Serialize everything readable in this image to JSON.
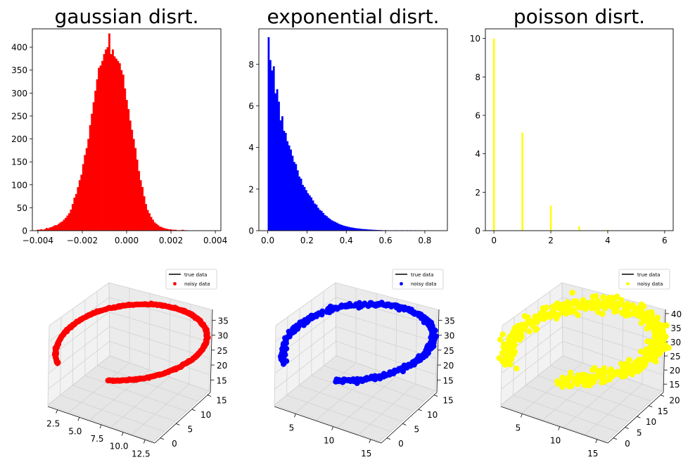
{
  "chart_data": [
    {
      "type": "histogram",
      "title": "gaussian disrt.",
      "color": "#ff0000",
      "xlim": [
        -0.00425,
        0.00425
      ],
      "ylim": [
        0,
        440
      ],
      "xticks": [
        -0.004,
        -0.002,
        0.0,
        0.002,
        0.004
      ],
      "xtick_labels": [
        "−0.004",
        "−0.002",
        "0.000",
        "0.002",
        "0.004"
      ],
      "yticks": [
        0,
        50,
        100,
        150,
        200,
        250,
        300,
        350,
        400
      ],
      "ytick_labels": [
        "0",
        "50",
        "100",
        "150",
        "200",
        "250",
        "300",
        "350",
        "400"
      ],
      "bin_edges_start": -0.00405,
      "bin_width": 7.87e-05,
      "values": [
        2,
        2,
        3,
        2,
        3,
        6,
        5,
        7,
        8,
        10,
        12,
        12,
        15,
        18,
        20,
        24,
        28,
        33,
        38,
        46,
        58,
        72,
        80,
        95,
        110,
        122,
        145,
        165,
        180,
        200,
        230,
        255,
        280,
        305,
        330,
        355,
        360,
        370,
        385,
        395,
        400,
        430,
        385,
        395,
        380,
        375,
        370,
        365,
        350,
        340,
        310,
        285,
        265,
        240,
        220,
        200,
        180,
        155,
        130,
        110,
        95,
        75,
        58,
        45,
        38,
        30,
        24,
        18,
        15,
        12,
        9,
        8,
        6,
        5,
        4,
        3,
        3,
        2,
        2,
        2,
        1,
        1,
        1,
        2,
        1,
        1
      ]
    },
    {
      "type": "histogram",
      "title": "exponential disrt.",
      "color": "#0000ff",
      "xlim": [
        -0.045,
        0.915
      ],
      "ylim": [
        0,
        9.7
      ],
      "xticks": [
        0.0,
        0.2,
        0.4,
        0.6,
        0.8
      ],
      "xtick_labels": [
        "0.0",
        "0.2",
        "0.4",
        "0.6",
        "0.8"
      ],
      "yticks": [
        0,
        2,
        4,
        6,
        8
      ],
      "ytick_labels": [
        "0",
        "2",
        "4",
        "6",
        "8"
      ],
      "bin_edges_start": 0.0,
      "bin_width": 0.0087,
      "values": [
        9.3,
        8.2,
        7.7,
        7.9,
        6.6,
        6.8,
        6.2,
        5.3,
        5.5,
        4.8,
        4.7,
        4.3,
        4.1,
        3.9,
        3.6,
        3.3,
        3.2,
        2.9,
        2.6,
        2.5,
        2.2,
        2.1,
        1.95,
        1.8,
        1.7,
        1.6,
        1.45,
        1.3,
        1.25,
        1.1,
        1.0,
        0.95,
        0.85,
        0.75,
        0.7,
        0.62,
        0.56,
        0.5,
        0.46,
        0.42,
        0.38,
        0.33,
        0.3,
        0.27,
        0.24,
        0.22,
        0.2,
        0.18,
        0.16,
        0.15,
        0.13,
        0.12,
        0.11,
        0.1,
        0.09,
        0.08,
        0.075,
        0.07,
        0.06,
        0.055,
        0.05,
        0.045,
        0.04,
        0.035,
        0.03,
        0.03,
        0.025,
        0.02,
        0.02,
        0.02,
        0.015,
        0.01,
        0.01,
        0.01,
        0.02,
        0.01,
        0.01,
        0.01,
        0.02,
        0.01,
        0.01,
        0.02,
        0.0,
        0.02,
        0.01,
        0.0,
        0.02,
        0.0,
        0.01,
        0.01,
        0.0,
        0.0,
        0.01,
        0.0,
        0.0,
        0.0,
        0.0,
        0.0,
        0.0,
        0.01,
        0.0,
        0.0,
        0.0,
        0.0,
        0.0
      ]
    },
    {
      "type": "histogram",
      "title": "poisson disrt.",
      "color": "#ffff00",
      "xlim": [
        -0.3,
        6.3
      ],
      "ylim": [
        0,
        10.5
      ],
      "xticks": [
        0,
        2,
        4,
        6
      ],
      "xtick_labels": [
        "0",
        "2",
        "4",
        "6"
      ],
      "yticks": [
        0,
        2,
        4,
        6,
        8,
        10
      ],
      "ytick_labels": [
        "0",
        "2",
        "4",
        "6",
        "8",
        "10"
      ],
      "bars": [
        {
          "x": 0,
          "value": 10.0
        },
        {
          "x": 1,
          "value": 5.1
        },
        {
          "x": 2,
          "value": 1.3
        },
        {
          "x": 3,
          "value": 0.22
        },
        {
          "x": 4,
          "value": 0.05
        },
        {
          "x": 5,
          "value": 0.02
        },
        {
          "x": 6,
          "value": 0.01
        }
      ],
      "bar_width": 0.06
    },
    {
      "type": "scatter3d",
      "color": "#ff0000",
      "legend": [
        "true data",
        "noisy data"
      ],
      "xticks": [
        "2.5",
        "5.0",
        "7.5",
        "10.0",
        "12.5"
      ],
      "yticks": [
        "0",
        "5",
        "10",
        "15"
      ],
      "zticks": [
        "15",
        "20",
        "25",
        "30",
        "35"
      ],
      "noise": 0.15
    },
    {
      "type": "scatter3d",
      "color": "#0000ff",
      "legend": [
        "true data",
        "noisy data"
      ],
      "xticks": [
        "5",
        "10",
        "15"
      ],
      "yticks": [
        "0",
        "5",
        "10",
        "15"
      ],
      "zticks": [
        "15",
        "20",
        "25",
        "30",
        "35"
      ],
      "noise": 0.5
    },
    {
      "type": "scatter3d",
      "color": "#ffff00",
      "legend": [
        "true data",
        "noisy data"
      ],
      "xticks": [
        "5",
        "10",
        "15"
      ],
      "yticks": [
        "0",
        "5",
        "10",
        "15",
        "20"
      ],
      "zticks": [
        "15",
        "20",
        "25",
        "30",
        "35",
        "40"
      ],
      "noise": 1.6
    }
  ]
}
